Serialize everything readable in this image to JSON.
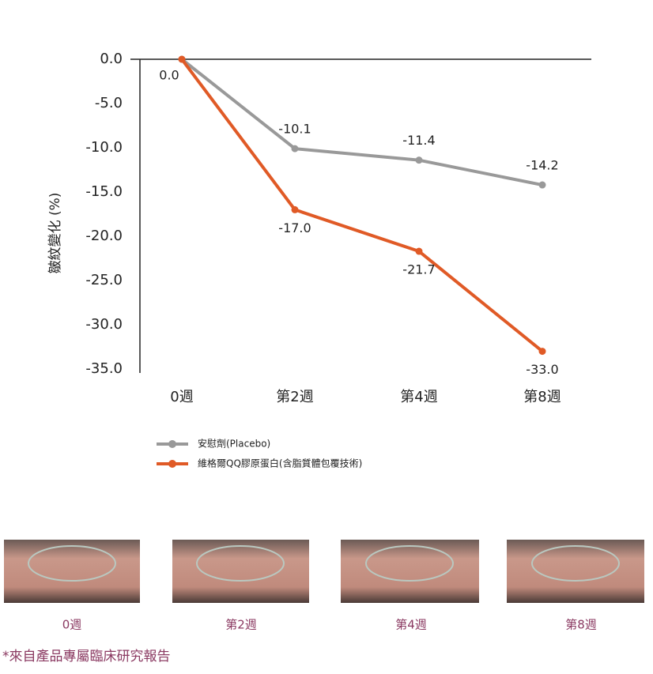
{
  "chart_data": {
    "type": "line",
    "y_label": "皺紋變化 (%)",
    "categories": [
      "0週",
      "第2週",
      "第4週",
      "第8週"
    ],
    "ylim": [
      -35,
      0
    ],
    "yticks": [
      {
        "value": 0,
        "label": "0.0"
      },
      {
        "value": -5,
        "label": "-5.0"
      },
      {
        "value": -10,
        "label": "-10.0"
      },
      {
        "value": -15,
        "label": "-15.0"
      },
      {
        "value": -20,
        "label": "-20.0"
      },
      {
        "value": -25,
        "label": "-25.0"
      },
      {
        "value": -30,
        "label": "-30.0"
      },
      {
        "value": -35,
        "label": "-35.0"
      }
    ],
    "series": [
      {
        "name": "安慰劑(Placebo)",
        "color": "#999999",
        "values": [
          0,
          -10.1,
          -11.4,
          -14.2
        ],
        "value_labels": [
          null,
          "-10.1",
          "-11.4",
          "-14.2"
        ]
      },
      {
        "name": "維格爾QQ膠原蛋白(含脂質體包覆技術)",
        "color": "#e05a26",
        "values": [
          0,
          -17.0,
          -21.7,
          -33.0
        ],
        "value_labels": [
          "0.0",
          "-17.0",
          "-21.7",
          "-33.0"
        ]
      }
    ]
  },
  "photos": {
    "captions": [
      "0週",
      "第2週",
      "第4週",
      "第8週"
    ]
  },
  "footnote": "*來自產品專屬臨床研究報告"
}
